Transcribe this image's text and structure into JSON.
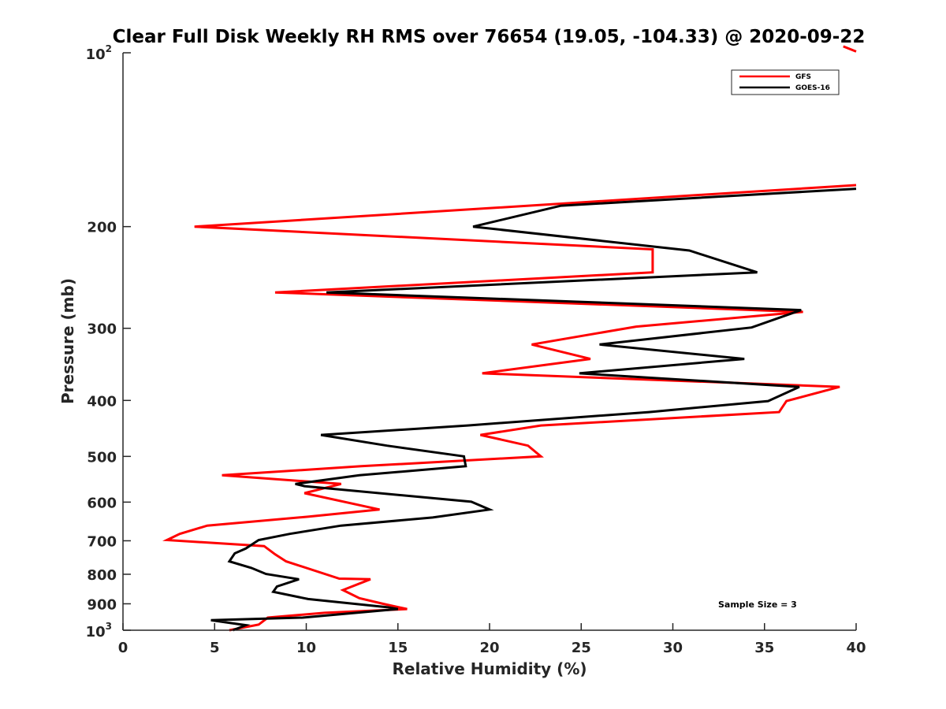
{
  "chart_data": {
    "type": "line",
    "title": "Clear Full Disk Weekly RH RMS over 76654 (19.05, -104.33) @ 2020-09-22",
    "xlabel": "Relative Humidity (%)",
    "ylabel": "Pressure (mb)",
    "xlim": [
      0,
      40
    ],
    "ylim": [
      100,
      1000
    ],
    "yscale": "log",
    "yreversed": true,
    "grid": false,
    "legend_position": "top-right",
    "x_ticks": [
      {
        "value": 0,
        "label": "0"
      },
      {
        "value": 5,
        "label": "5"
      },
      {
        "value": 10,
        "label": "10"
      },
      {
        "value": 15,
        "label": "15"
      },
      {
        "value": 20,
        "label": "20"
      },
      {
        "value": 25,
        "label": "25"
      },
      {
        "value": 30,
        "label": "30"
      },
      {
        "value": 35,
        "label": "35"
      },
      {
        "value": 40,
        "label": "40"
      }
    ],
    "y_ticks": [
      {
        "value": 100,
        "label": "10",
        "sup": "2"
      },
      {
        "value": 200,
        "label": "200",
        "sup": ""
      },
      {
        "value": 300,
        "label": "300",
        "sup": ""
      },
      {
        "value": 400,
        "label": "400",
        "sup": ""
      },
      {
        "value": 500,
        "label": "500",
        "sup": ""
      },
      {
        "value": 600,
        "label": "600",
        "sup": ""
      },
      {
        "value": 700,
        "label": "700",
        "sup": ""
      },
      {
        "value": 800,
        "label": "800",
        "sup": ""
      },
      {
        "value": 900,
        "label": "900",
        "sup": ""
      },
      {
        "value": 1000,
        "label": "10",
        "sup": "3"
      }
    ],
    "annotation": "Sample Size = 3",
    "series": [
      {
        "name": "GFS",
        "color": "#ff0000",
        "points": [
          [
            40.0,
            169.5
          ],
          [
            3.9,
            200
          ],
          [
            28.9,
            219
          ],
          [
            28.9,
            240
          ],
          [
            8.3,
            260
          ],
          [
            37.1,
            281
          ],
          [
            28.0,
            298
          ],
          [
            22.3,
            320
          ],
          [
            25.5,
            339
          ],
          [
            19.6,
            359
          ],
          [
            39.1,
            379
          ],
          [
            36.2,
            401
          ],
          [
            35.8,
            419
          ],
          [
            22.8,
            442
          ],
          [
            19.5,
            459
          ],
          [
            22.1,
            479
          ],
          [
            22.8,
            500
          ],
          [
            13.0,
            520
          ],
          [
            5.4,
            539
          ],
          [
            11.9,
            558
          ],
          [
            9.9,
            579
          ],
          [
            14.0,
            618
          ],
          [
            10.1,
            636
          ],
          [
            4.6,
            659
          ],
          [
            3.1,
            681
          ],
          [
            2.4,
            698
          ],
          [
            7.7,
            715
          ],
          [
            8.3,
            739
          ],
          [
            8.9,
            760
          ],
          [
            11.8,
            814
          ],
          [
            13.5,
            816
          ],
          [
            12.0,
            852
          ],
          [
            12.9,
            880
          ],
          [
            14.2,
            900
          ],
          [
            15.5,
            919
          ],
          [
            11.0,
            933
          ],
          [
            7.9,
            951
          ],
          [
            7.4,
            978
          ],
          [
            5.8,
            1000
          ]
        ],
        "offscale_fragment": [
          [
            39.3,
            97.5
          ],
          [
            40.0,
            99.5
          ]
        ]
      },
      {
        "name": "GOES-16",
        "color": "#000000",
        "points": [
          [
            40.0,
            172
          ],
          [
            23.9,
            184
          ],
          [
            19.1,
            200
          ],
          [
            30.9,
            220
          ],
          [
            34.6,
            240
          ],
          [
            11.1,
            260
          ],
          [
            37.0,
            279
          ],
          [
            34.3,
            299
          ],
          [
            26.0,
            320
          ],
          [
            33.9,
            339
          ],
          [
            24.9,
            359
          ],
          [
            36.9,
            379
          ],
          [
            35.2,
            401
          ],
          [
            28.7,
            419
          ],
          [
            18.8,
            442
          ],
          [
            10.8,
            459
          ],
          [
            14.4,
            479
          ],
          [
            18.6,
            500
          ],
          [
            18.7,
            520
          ],
          [
            12.9,
            539
          ],
          [
            9.4,
            558
          ],
          [
            9.9,
            563
          ],
          [
            19.0,
            599
          ],
          [
            20.0,
            618
          ],
          [
            16.9,
            638
          ],
          [
            11.9,
            659
          ],
          [
            9.1,
            681
          ],
          [
            7.4,
            698
          ],
          [
            6.7,
            722
          ],
          [
            6.1,
            736
          ],
          [
            5.8,
            760
          ],
          [
            7.0,
            780
          ],
          [
            7.8,
            799
          ],
          [
            9.6,
            816
          ],
          [
            8.4,
            840
          ],
          [
            8.2,
            858
          ],
          [
            10.1,
            883
          ],
          [
            14.4,
            912
          ],
          [
            15.0,
            919
          ],
          [
            9.8,
            951
          ],
          [
            4.8,
            961
          ],
          [
            6.7,
            980
          ],
          [
            6.0,
            1000
          ]
        ]
      }
    ]
  }
}
